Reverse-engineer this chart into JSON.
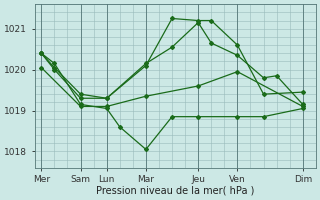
{
  "xlabel": "Pression niveau de la mer( hPa )",
  "background_color": "#cce8e5",
  "grid_color": "#99bbbb",
  "line_color": "#1a6b1a",
  "ylim": [
    1017.6,
    1021.6
  ],
  "yticks": [
    1018,
    1019,
    1020,
    1021
  ],
  "xtick_labels": [
    "Mer",
    "Sam",
    "Lun",
    "Mar",
    "Jeu",
    "Ven",
    "Dim"
  ],
  "xtick_positions": [
    0,
    3,
    5,
    8,
    12,
    15,
    20
  ],
  "xlim": [
    -0.5,
    21
  ],
  "series": [
    {
      "xs": [
        0,
        3,
        5,
        8,
        12,
        15,
        20
      ],
      "ys": [
        1020.05,
        1019.1,
        1019.1,
        1019.35,
        1019.6,
        1019.95,
        1019.1
      ]
    },
    {
      "xs": [
        0,
        1,
        3,
        5,
        6,
        8,
        10,
        12,
        15,
        17,
        20
      ],
      "ys": [
        1020.4,
        1020.15,
        1019.15,
        1019.05,
        1018.6,
        1018.05,
        1018.85,
        1018.85,
        1018.85,
        1018.85,
        1019.05
      ]
    },
    {
      "xs": [
        0,
        1,
        3,
        5,
        8,
        10,
        12,
        13,
        15,
        17,
        20
      ],
      "ys": [
        1020.4,
        1020.0,
        1019.3,
        1019.3,
        1020.1,
        1021.25,
        1021.2,
        1021.2,
        1020.6,
        1019.4,
        1019.45
      ]
    },
    {
      "xs": [
        0,
        1,
        3,
        5,
        8,
        10,
        12,
        13,
        15,
        17,
        18,
        20
      ],
      "ys": [
        1020.4,
        1020.05,
        1019.4,
        1019.3,
        1020.15,
        1020.55,
        1021.15,
        1020.65,
        1020.35,
        1019.8,
        1019.85,
        1019.15
      ]
    }
  ]
}
